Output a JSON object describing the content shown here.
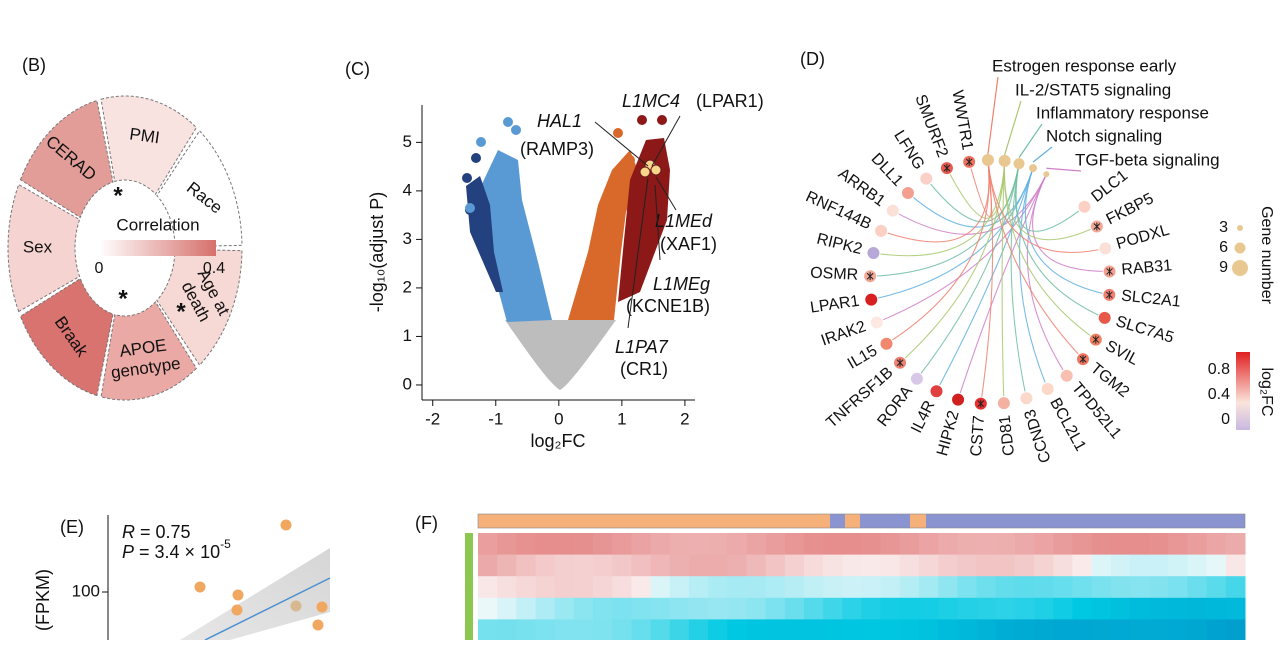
{
  "panels": {
    "b": {
      "label": "(B)",
      "segments": [
        {
          "lines": [
            "PMI"
          ],
          "color": "#f9e3e1"
        },
        {
          "lines": [
            "Race"
          ],
          "color": "#ffffff"
        },
        {
          "lines": [
            "Age at",
            "death"
          ],
          "color": "#f6d8d4"
        },
        {
          "lines": [
            "APOE",
            "genotype"
          ],
          "color": "#eba9a5"
        },
        {
          "lines": [
            "Braak"
          ],
          "color": "#d9736f"
        },
        {
          "lines": [
            "Sex"
          ],
          "color": "#f5d3d1"
        },
        {
          "lines": [
            "CERAD"
          ],
          "color": "#e39d99"
        }
      ],
      "stars": [
        "*",
        "*",
        "*"
      ],
      "legend": {
        "title": "Correlation",
        "min": 0,
        "max": 0.4,
        "low_color": "#ffffff",
        "high_color": "#d6706b"
      }
    },
    "c": {
      "label": "(C)",
      "x_label": "log₂FC",
      "y_label": "-log₁₀(adjust P)",
      "xlim": [
        -2.17,
        2.16
      ],
      "ylim": [
        -0.31,
        5.77
      ],
      "xticks": [
        -2,
        -1,
        0,
        1,
        2
      ],
      "yticks": [
        0,
        1,
        2,
        3,
        4,
        5
      ],
      "annotations": [
        {
          "text": "L1MC4",
          "italic": true,
          "color": "#111111"
        },
        {
          "text": "(LPAR1)",
          "italic": false,
          "color": "#7a2e2e"
        },
        {
          "text": "HAL1",
          "italic": true,
          "color": "#111111"
        },
        {
          "text": "(RAMP3)",
          "italic": false,
          "color": "#7a2e2e"
        },
        {
          "text": "L1MEd",
          "italic": true,
          "color": "#111111"
        },
        {
          "text": "(XAF1)",
          "italic": false,
          "color": "#7a2e2e"
        },
        {
          "text": "L1MEg",
          "italic": true,
          "color": "#111111"
        },
        {
          "text": "(KCNE1B)",
          "italic": false,
          "color": "#111111"
        },
        {
          "text": "L1PA7",
          "italic": true,
          "color": "#111111"
        },
        {
          "text": "(CR1)",
          "italic": false,
          "color": "#111111"
        }
      ]
    },
    "d": {
      "label": "(D)",
      "genes": [
        {
          "name": "WWTR1",
          "color": "#f07060",
          "star": true
        },
        {
          "name": "SMURF2",
          "color": "#e85a50",
          "star": true
        },
        {
          "name": "LFNG",
          "color": "#fbd0c8",
          "star": false
        },
        {
          "name": "DLL1",
          "color": "#f4a090",
          "star": false
        },
        {
          "name": "ARRB1",
          "color": "#fbe0d8",
          "star": false
        },
        {
          "name": "RNF144B",
          "color": "#fad0c4",
          "star": false
        },
        {
          "name": "RIPK2",
          "color": "#b8a8d8",
          "star": false
        },
        {
          "name": "OSMR",
          "color": "#f4a898",
          "star": true
        },
        {
          "name": "LPAR1",
          "color": "#d82020",
          "star": false
        },
        {
          "name": "IRAK2",
          "color": "#fde8e2",
          "star": false
        },
        {
          "name": "IL15",
          "color": "#f08870",
          "star": false
        },
        {
          "name": "TNFRSF1B",
          "color": "#f08070",
          "star": true
        },
        {
          "name": "RORA",
          "color": "#d8c8e8",
          "star": false
        },
        {
          "name": "IL4R",
          "color": "#e04040",
          "star": false
        },
        {
          "name": "HIPK2",
          "color": "#d02020",
          "star": false
        },
        {
          "name": "CST7",
          "color": "#e83030",
          "star": true
        },
        {
          "name": "CD81",
          "color": "#f4b0a0",
          "star": false
        },
        {
          "name": "CCND3",
          "color": "#fbd8cc",
          "star": false
        },
        {
          "name": "BCL2L1",
          "color": "#fcd8c8",
          "star": false
        },
        {
          "name": "TPD52L1",
          "color": "#f8c0b0",
          "star": false
        },
        {
          "name": "TGM2",
          "color": "#f07860",
          "star": true
        },
        {
          "name": "SVIL",
          "color": "#f08060",
          "star": true
        },
        {
          "name": "SLC7A5",
          "color": "#e85848",
          "star": false
        },
        {
          "name": "SLC2A1",
          "color": "#f08070",
          "star": true
        },
        {
          "name": "RAB31",
          "color": "#f4a090",
          "star": true
        },
        {
          "name": "PODXL",
          "color": "#fbe0d8",
          "star": false
        },
        {
          "name": "FKBP5",
          "color": "#f4a898",
          "star": true
        },
        {
          "name": "DLC1",
          "color": "#fcd0c4",
          "star": false
        }
      ],
      "pathways": [
        {
          "name": "Estrogen response early",
          "color": "#f08070"
        },
        {
          "name": "IL-2/STAT5 signaling",
          "color": "#a8c870"
        },
        {
          "name": "Inflammatory response",
          "color": "#70c0a0"
        },
        {
          "name": "Notch signaling",
          "color": "#60b0e0"
        },
        {
          "name": "TGF-beta signaling",
          "color": "#d080c8"
        }
      ],
      "size_legend": {
        "title": "Gene number",
        "levels": [
          3,
          6,
          9
        ],
        "color": "#e8c890"
      },
      "color_legend": {
        "title": "log₂FC",
        "ticks": [
          0.8,
          0.4,
          0
        ],
        "high_color": "#e02020",
        "mid_color": "#fbe4dc",
        "low_color": "#c8b8e0"
      }
    },
    "e": {
      "label": "(E)",
      "y_label": "(FPKM)",
      "ytick": 100,
      "r_symbol": "R",
      "r_text": "= 0.75",
      "p_symbol": "P",
      "p_text": "= 3.4 × 10",
      "p_exp": "-5"
    },
    "f": {
      "label": "(F)",
      "group_colors": [
        "#f6b07a",
        "#8a94d0"
      ],
      "side_color": "#8cc850"
    }
  }
}
